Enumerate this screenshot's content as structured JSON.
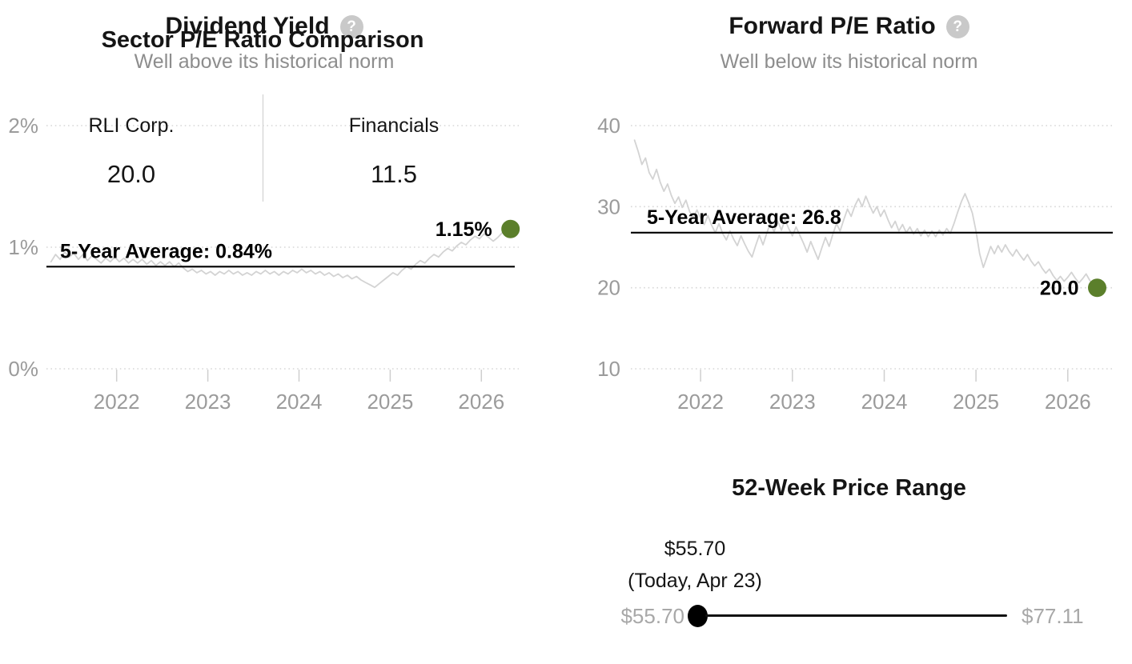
{
  "icons": {
    "help": "?"
  },
  "colors": {
    "marker_green": "#5b7f2b",
    "series_gray": "#d3d3d3",
    "average_black": "#000000",
    "axis_gray": "#9b9b9b",
    "muted_gray": "#a8a8a8"
  },
  "chart_data": [
    {
      "type": "line",
      "title": "Dividend Yield",
      "subtitle": "Well above its historical norm",
      "legend": "none",
      "grid": "dotted-horizontal",
      "y_ticks": [
        "0%",
        "1%",
        "2%"
      ],
      "y_tick_values": [
        0,
        1,
        2
      ],
      "x_ticks": [
        "2022",
        "2023",
        "2024",
        "2025",
        "2026"
      ],
      "x_tick_values": [
        2022,
        2023,
        2024,
        2025,
        2026
      ],
      "ylim": [
        0,
        2
      ],
      "xlim": [
        2021.23,
        2026.41
      ],
      "average": {
        "label": "5-Year Average: 0.84%",
        "value": 0.84
      },
      "current": {
        "label": "1.15%",
        "value": 1.15,
        "x": 2026.32
      },
      "series": [
        {
          "name": "Dividend Yield",
          "points": [
            [
              2021.28,
              0.88
            ],
            [
              2021.33,
              0.94
            ],
            [
              2021.38,
              0.9
            ],
            [
              2021.43,
              0.96
            ],
            [
              2021.48,
              0.92
            ],
            [
              2021.53,
              0.95
            ],
            [
              2021.58,
              0.9
            ],
            [
              2021.63,
              0.94
            ],
            [
              2021.68,
              0.89
            ],
            [
              2021.73,
              0.93
            ],
            [
              2021.78,
              0.9
            ],
            [
              2021.83,
              0.87
            ],
            [
              2021.88,
              0.91
            ],
            [
              2021.93,
              0.88
            ],
            [
              2021.98,
              0.92
            ],
            [
              2022.03,
              0.88
            ],
            [
              2022.08,
              0.91
            ],
            [
              2022.13,
              0.87
            ],
            [
              2022.18,
              0.9
            ],
            [
              2022.23,
              0.87
            ],
            [
              2022.28,
              0.9
            ],
            [
              2022.33,
              0.86
            ],
            [
              2022.38,
              0.89
            ],
            [
              2022.43,
              0.85
            ],
            [
              2022.48,
              0.88
            ],
            [
              2022.53,
              0.85
            ],
            [
              2022.58,
              0.88
            ],
            [
              2022.63,
              0.84
            ],
            [
              2022.68,
              0.87
            ],
            [
              2022.73,
              0.83
            ],
            [
              2022.78,
              0.8
            ],
            [
              2022.83,
              0.82
            ],
            [
              2022.88,
              0.79
            ],
            [
              2022.93,
              0.81
            ],
            [
              2022.98,
              0.78
            ],
            [
              2023.03,
              0.8
            ],
            [
              2023.08,
              0.77
            ],
            [
              2023.13,
              0.8
            ],
            [
              2023.18,
              0.78
            ],
            [
              2023.23,
              0.81
            ],
            [
              2023.28,
              0.78
            ],
            [
              2023.33,
              0.8
            ],
            [
              2023.38,
              0.77
            ],
            [
              2023.43,
              0.79
            ],
            [
              2023.48,
              0.77
            ],
            [
              2023.53,
              0.8
            ],
            [
              2023.58,
              0.78
            ],
            [
              2023.63,
              0.81
            ],
            [
              2023.68,
              0.78
            ],
            [
              2023.73,
              0.8
            ],
            [
              2023.78,
              0.77
            ],
            [
              2023.83,
              0.8
            ],
            [
              2023.88,
              0.78
            ],
            [
              2023.93,
              0.81
            ],
            [
              2023.98,
              0.79
            ],
            [
              2024.03,
              0.82
            ],
            [
              2024.08,
              0.79
            ],
            [
              2024.13,
              0.81
            ],
            [
              2024.18,
              0.78
            ],
            [
              2024.23,
              0.8
            ],
            [
              2024.28,
              0.77
            ],
            [
              2024.33,
              0.79
            ],
            [
              2024.38,
              0.76
            ],
            [
              2024.43,
              0.78
            ],
            [
              2024.48,
              0.75
            ],
            [
              2024.53,
              0.77
            ],
            [
              2024.58,
              0.74
            ],
            [
              2024.63,
              0.76
            ],
            [
              2024.68,
              0.73
            ],
            [
              2024.73,
              0.71
            ],
            [
              2024.78,
              0.69
            ],
            [
              2024.83,
              0.67
            ],
            [
              2024.88,
              0.7
            ],
            [
              2024.93,
              0.73
            ],
            [
              2024.98,
              0.76
            ],
            [
              2025.03,
              0.79
            ],
            [
              2025.08,
              0.77
            ],
            [
              2025.13,
              0.81
            ],
            [
              2025.18,
              0.84
            ],
            [
              2025.23,
              0.82
            ],
            [
              2025.28,
              0.86
            ],
            [
              2025.33,
              0.89
            ],
            [
              2025.38,
              0.87
            ],
            [
              2025.43,
              0.91
            ],
            [
              2025.48,
              0.94
            ],
            [
              2025.53,
              0.92
            ],
            [
              2025.58,
              0.96
            ],
            [
              2025.63,
              0.99
            ],
            [
              2025.68,
              0.97
            ],
            [
              2025.73,
              1.01
            ],
            [
              2025.78,
              1.04
            ],
            [
              2025.83,
              1.02
            ],
            [
              2025.88,
              1.06
            ],
            [
              2025.93,
              1.09
            ],
            [
              2025.98,
              1.07
            ],
            [
              2026.03,
              1.11
            ],
            [
              2026.08,
              1.08
            ],
            [
              2026.13,
              1.05
            ],
            [
              2026.18,
              1.08
            ],
            [
              2026.23,
              1.12
            ],
            [
              2026.28,
              1.14
            ],
            [
              2026.32,
              1.15
            ]
          ]
        }
      ]
    },
    {
      "type": "line",
      "title": "Forward P/E Ratio",
      "subtitle": "Well below its historical norm",
      "legend": "none",
      "grid": "dotted-horizontal",
      "y_ticks": [
        "10",
        "20",
        "30",
        "40"
      ],
      "y_tick_values": [
        10,
        20,
        30,
        40
      ],
      "x_ticks": [
        "2022",
        "2023",
        "2024",
        "2025",
        "2026"
      ],
      "x_tick_values": [
        2022,
        2023,
        2024,
        2025,
        2026
      ],
      "ylim": [
        10,
        40
      ],
      "xlim": [
        2021.24,
        2026.49
      ],
      "average": {
        "label": "5-Year Average: 26.8",
        "value": 26.8
      },
      "current": {
        "label": "20.0",
        "value": 20.0,
        "x": 2026.32
      },
      "series": [
        {
          "name": "Forward P/E Ratio",
          "points": [
            [
              2021.28,
              38.2
            ],
            [
              2021.32,
              36.8
            ],
            [
              2021.36,
              35.2
            ],
            [
              2021.4,
              36.0
            ],
            [
              2021.44,
              34.2
            ],
            [
              2021.48,
              33.4
            ],
            [
              2021.52,
              34.6
            ],
            [
              2021.56,
              33.0
            ],
            [
              2021.6,
              31.9
            ],
            [
              2021.64,
              32.8
            ],
            [
              2021.68,
              31.4
            ],
            [
              2021.72,
              30.4
            ],
            [
              2021.76,
              31.2
            ],
            [
              2021.8,
              29.9
            ],
            [
              2021.84,
              30.8
            ],
            [
              2021.88,
              29.4
            ],
            [
              2021.92,
              28.6
            ],
            [
              2021.96,
              29.6
            ],
            [
              2022.0,
              28.6
            ],
            [
              2022.04,
              27.8
            ],
            [
              2022.08,
              28.9
            ],
            [
              2022.12,
              27.7
            ],
            [
              2022.16,
              26.8
            ],
            [
              2022.2,
              27.9
            ],
            [
              2022.24,
              26.7
            ],
            [
              2022.28,
              25.9
            ],
            [
              2022.32,
              27.0
            ],
            [
              2022.36,
              26.0
            ],
            [
              2022.4,
              25.2
            ],
            [
              2022.44,
              26.4
            ],
            [
              2022.48,
              25.4
            ],
            [
              2022.52,
              24.5
            ],
            [
              2022.56,
              23.8
            ],
            [
              2022.6,
              25.2
            ],
            [
              2022.64,
              26.5
            ],
            [
              2022.68,
              25.3
            ],
            [
              2022.72,
              26.7
            ],
            [
              2022.76,
              28.0
            ],
            [
              2022.8,
              26.9
            ],
            [
              2022.84,
              28.2
            ],
            [
              2022.88,
              27.1
            ],
            [
              2022.92,
              28.4
            ],
            [
              2022.96,
              27.3
            ],
            [
              2023.0,
              26.4
            ],
            [
              2023.04,
              27.5
            ],
            [
              2023.08,
              26.5
            ],
            [
              2023.12,
              25.5
            ],
            [
              2023.16,
              24.4
            ],
            [
              2023.2,
              25.7
            ],
            [
              2023.24,
              24.6
            ],
            [
              2023.28,
              23.5
            ],
            [
              2023.32,
              24.9
            ],
            [
              2023.36,
              26.2
            ],
            [
              2023.4,
              25.1
            ],
            [
              2023.44,
              26.6
            ],
            [
              2023.48,
              27.9
            ],
            [
              2023.52,
              27.0
            ],
            [
              2023.56,
              28.4
            ],
            [
              2023.6,
              29.7
            ],
            [
              2023.64,
              28.8
            ],
            [
              2023.68,
              30.1
            ],
            [
              2023.72,
              31.0
            ],
            [
              2023.76,
              30.0
            ],
            [
              2023.8,
              31.3
            ],
            [
              2023.84,
              30.2
            ],
            [
              2023.88,
              29.2
            ],
            [
              2023.92,
              30.0
            ],
            [
              2023.96,
              28.8
            ],
            [
              2024.0,
              29.6
            ],
            [
              2024.04,
              28.4
            ],
            [
              2024.08,
              27.4
            ],
            [
              2024.12,
              28.2
            ],
            [
              2024.16,
              27.0
            ],
            [
              2024.2,
              27.8
            ],
            [
              2024.24,
              26.8
            ],
            [
              2024.28,
              27.5
            ],
            [
              2024.32,
              26.6
            ],
            [
              2024.36,
              27.3
            ],
            [
              2024.4,
              26.4
            ],
            [
              2024.44,
              27.1
            ],
            [
              2024.48,
              26.3
            ],
            [
              2024.52,
              27.0
            ],
            [
              2024.56,
              26.3
            ],
            [
              2024.6,
              27.1
            ],
            [
              2024.64,
              26.5
            ],
            [
              2024.68,
              27.3
            ],
            [
              2024.72,
              26.7
            ],
            [
              2024.76,
              27.9
            ],
            [
              2024.8,
              29.3
            ],
            [
              2024.84,
              30.6
            ],
            [
              2024.88,
              31.6
            ],
            [
              2024.92,
              30.5
            ],
            [
              2024.96,
              29.2
            ],
            [
              2025.0,
              27.0
            ],
            [
              2025.04,
              24.2
            ],
            [
              2025.08,
              22.5
            ],
            [
              2025.12,
              23.8
            ],
            [
              2025.16,
              25.1
            ],
            [
              2025.2,
              24.2
            ],
            [
              2025.24,
              25.2
            ],
            [
              2025.28,
              24.4
            ],
            [
              2025.32,
              25.3
            ],
            [
              2025.36,
              24.5
            ],
            [
              2025.4,
              23.9
            ],
            [
              2025.44,
              24.7
            ],
            [
              2025.48,
              24.0
            ],
            [
              2025.52,
              23.4
            ],
            [
              2025.56,
              24.1
            ],
            [
              2025.6,
              23.3
            ],
            [
              2025.64,
              22.7
            ],
            [
              2025.68,
              23.2
            ],
            [
              2025.72,
              22.4
            ],
            [
              2025.76,
              21.8
            ],
            [
              2025.8,
              22.3
            ],
            [
              2025.84,
              21.5
            ],
            [
              2025.88,
              20.9
            ],
            [
              2025.92,
              21.4
            ],
            [
              2025.96,
              20.8
            ],
            [
              2026.0,
              21.3
            ],
            [
              2026.04,
              21.9
            ],
            [
              2026.08,
              21.2
            ],
            [
              2026.12,
              20.6
            ],
            [
              2026.16,
              21.1
            ],
            [
              2026.2,
              21.7
            ],
            [
              2026.24,
              20.9
            ],
            [
              2026.28,
              20.3
            ],
            [
              2026.32,
              20.0
            ]
          ]
        }
      ]
    },
    {
      "type": "table",
      "title": "Sector P/E Ratio Comparison",
      "columns": [
        {
          "label": "RLI Corp.",
          "value": "20.0"
        },
        {
          "label": "Financials",
          "value": "11.5"
        }
      ]
    },
    {
      "type": "range",
      "title": "52-Week Price Range",
      "current": "$55.70",
      "current_note": "(Today, Apr 23)",
      "low": "$55.70",
      "high": "$77.11",
      "position": 0.0
    }
  ]
}
